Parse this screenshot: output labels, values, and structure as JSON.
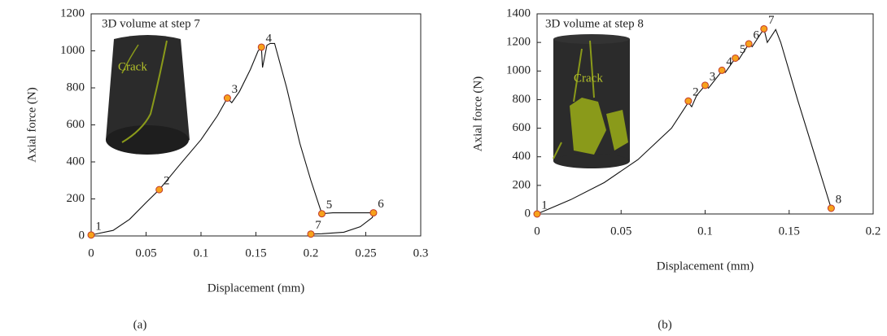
{
  "chart_data": [
    {
      "type": "line",
      "inset_title": "3D volume at step 7",
      "inset_label": "Crack",
      "xlabel": "Displacement (mm)",
      "ylabel": "Axial force (N)",
      "caption": "(a)",
      "color": "#111111",
      "xlim": [
        0,
        0.3
      ],
      "xticks": [
        0,
        0.05,
        0.1,
        0.15,
        0.2,
        0.25,
        0.3
      ],
      "ylim": [
        0,
        1200
      ],
      "yticks": [
        0,
        200,
        400,
        600,
        800,
        1000,
        1200
      ],
      "x": [
        0,
        0.02,
        0.035,
        0.05,
        0.062,
        0.08,
        0.1,
        0.115,
        0.124,
        0.128,
        0.135,
        0.145,
        0.152,
        0.155,
        0.156,
        0.16,
        0.163,
        0.167,
        0.178,
        0.19,
        0.2,
        0.21,
        0.22,
        0.24,
        0.257,
        0.256,
        0.245,
        0.23,
        0.21,
        0.2
      ],
      "values": [
        5,
        30,
        90,
        180,
        250,
        380,
        520,
        650,
        745,
        720,
        780,
        900,
        1000,
        1020,
        910,
        1030,
        1040,
        1040,
        800,
        500,
        300,
        120,
        125,
        125,
        125,
        100,
        50,
        20,
        12,
        10
      ],
      "points": {
        "marker_color": "#f7a21b",
        "labels": [
          "1",
          "2",
          "3",
          "4",
          "5",
          "6",
          "7"
        ],
        "x": [
          0,
          0.062,
          0.124,
          0.155,
          0.21,
          0.257,
          0.2
        ],
        "y": [
          5,
          250,
          745,
          1020,
          120,
          125,
          10
        ]
      }
    },
    {
      "type": "line",
      "inset_title": "3D volume at step 8",
      "inset_label": "Crack",
      "xlabel": "Displacement (mm)",
      "ylabel": "Axial force (N)",
      "caption": "(b)",
      "color": "#111111",
      "xlim": [
        0,
        0.2
      ],
      "xticks": [
        0,
        0.05,
        0.1,
        0.15,
        0.2
      ],
      "ylim": [
        0,
        1400
      ],
      "yticks": [
        0,
        200,
        400,
        600,
        800,
        1000,
        1200,
        1400
      ],
      "x": [
        0,
        0.02,
        0.04,
        0.06,
        0.08,
        0.09,
        0.092,
        0.095,
        0.1,
        0.102,
        0.11,
        0.112,
        0.118,
        0.12,
        0.126,
        0.128,
        0.135,
        0.137,
        0.142,
        0.145,
        0.155,
        0.165,
        0.175
      ],
      "values": [
        0,
        100,
        220,
        380,
        600,
        780,
        750,
        830,
        900,
        880,
        1000,
        990,
        1090,
        1080,
        1190,
        1170,
        1295,
        1200,
        1290,
        1200,
        800,
        420,
        40
      ],
      "points": {
        "marker_color": "#f7a21b",
        "labels": [
          "1",
          "2",
          "3",
          "4",
          "5",
          "6",
          "7",
          "8"
        ],
        "x": [
          0,
          0.09,
          0.1,
          0.11,
          0.118,
          0.126,
          0.135,
          0.175
        ],
        "y": [
          0,
          790,
          900,
          1005,
          1090,
          1190,
          1295,
          40
        ]
      }
    }
  ]
}
